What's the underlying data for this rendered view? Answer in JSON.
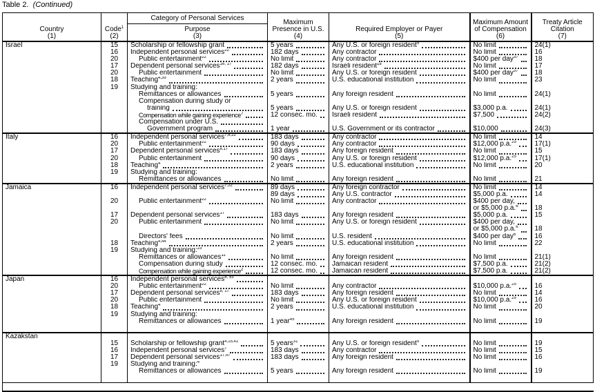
{
  "caption": {
    "label": "Table 2.",
    "note": "(Continued)"
  },
  "headers": {
    "country": "Country",
    "country_num": "(1)",
    "code": "Code",
    "code_note": "1",
    "code_num": "(2)",
    "category": "Category of Personal Services",
    "purpose": "Purpose",
    "purpose_num": "(3)",
    "presence": "Maximum Presence in U.S.",
    "presence_num": "(4)",
    "payer": "Required Employer or Payer",
    "payer_num": "(5)",
    "comp": "Maximum Amount of Compensation",
    "comp_num": "(6)",
    "article": "Treaty Article Citation",
    "article_num": "(7)"
  },
  "countries": [
    {
      "name": "Israel",
      "lines": [
        {
          "code": "15",
          "purpose": "Scholarship or fellowship grant",
          "presence": "5 years",
          "payer": "Any U.S. or foreign resident",
          "payer_note": "5",
          "comp": "No limit",
          "article": "24(1)"
        },
        {
          "code": "16",
          "purpose": "Independent personal services",
          "purpose_note": "22",
          "presence": "182 days",
          "payer": "Any contractor",
          "comp": "No limit",
          "article": "16"
        },
        {
          "code": "20",
          "indent": 1,
          "purpose": "Public entertainment",
          "purpose_note": "22",
          "presence": "No limit",
          "payer": "Any contractor",
          "comp": "$400 per day",
          "comp_note": "37",
          "article": "18"
        },
        {
          "code": "17",
          "purpose": "Dependent personal services",
          "purpose_note": "16, 17",
          "presence": "182 days",
          "payer": "Israeli resident",
          "payer_note": "18",
          "comp": "No limit",
          "article": "17"
        },
        {
          "code": "20",
          "indent": 1,
          "purpose": "Public entertainment",
          "presence": "No limit",
          "payer": "Any U.S. or foreign resident",
          "comp": "$400 per day",
          "comp_note": "37",
          "article": "18"
        },
        {
          "code": "18",
          "purpose": "Teaching",
          "purpose_note": "4,39",
          "presence": "2 years",
          "payer": "U.S. educational institution",
          "comp": "No limit",
          "article": "23"
        },
        {
          "code": "19",
          "purpose": "Studying and training:",
          "noleader": true
        },
        {
          "indent": 1,
          "purpose": "Remittances or allowances",
          "presence": "5 years",
          "payer": "Any foreign resident",
          "comp": "No limit",
          "article": "24(1)"
        },
        {
          "indent": 1,
          "purpose": "Compensation during study or",
          "noleader": true
        },
        {
          "indent": 2,
          "purpose": "training",
          "presence": "5 years",
          "payer": "Any U.S. or foreign resident",
          "comp": "$3,000 p.a.",
          "article": "24(1)"
        },
        {
          "indent": 1,
          "small": true,
          "purpose": "Compensation while gaining experience",
          "purpose_note": "7",
          "presence": "12 consec. mo.",
          "payer": "Israeli resident",
          "comp": "$7,500",
          "article": "24(2)"
        },
        {
          "indent": 1,
          "purpose": "Compensation under U.S."
        },
        {
          "indent": 2,
          "purpose": "Government program",
          "presence": "1 year",
          "payer": "U.S. Government or its contractor",
          "comp": "$10,000",
          "article": "24(3)"
        }
      ]
    },
    {
      "name": "Italy",
      "lines": [
        {
          "code": "16",
          "purpose": "Independent personal services",
          "purpose_note": "7,8,22",
          "presence": "183 days",
          "payer": "Any contractor",
          "comp": "No limit",
          "article": "14"
        },
        {
          "code": "20",
          "indent": 1,
          "purpose": "Public entertainment",
          "purpose_note": "22",
          "presence": "90 days",
          "payer": "Any contractor",
          "comp": "$12,000 p.a.",
          "comp_note": "25",
          "article": "17(1)"
        },
        {
          "code": "17",
          "purpose": "Dependent personal services",
          "purpose_note": "8,17",
          "presence": "183 days",
          "payer": "Any foreign resident",
          "comp": "No limit",
          "article": "15"
        },
        {
          "code": "20",
          "indent": 1,
          "purpose": "Public entertainment",
          "presence": "90 days",
          "payer": "Any U.S. or foreign resident",
          "comp": "$12,000 p.a.",
          "comp_note": "25",
          "article": "17(1)"
        },
        {
          "code": "18",
          "purpose": "Teaching",
          "purpose_note": "4",
          "presence": "2 years",
          "payer": "U.S. educational institution",
          "comp": "No limit",
          "article": "20"
        },
        {
          "code": "19",
          "purpose": "Studying and training:",
          "noleader": true
        },
        {
          "indent": 1,
          "purpose": "Remittances or allowances",
          "presence": "No limit",
          "payer": "Any foreign resident",
          "comp": "No limit",
          "article": "21"
        }
      ]
    },
    {
      "name": "Jamaica",
      "lines": [
        {
          "code": "16",
          "purpose": "Independent personal services",
          "purpose_note": "7,22",
          "presence": "89 days",
          "payer": "Any foreign contractor",
          "comp": "No limit",
          "article": "14"
        },
        {
          "presence": "89 days",
          "payer": "Any U.S. contractor",
          "comp": "$5,000 p.a.",
          "article": "14"
        },
        {
          "code": "20",
          "indent": 1,
          "purpose": "Public entertainment",
          "purpose_note": "22",
          "presence": "No limit",
          "payer": "Any contractor",
          "comp": "$400 per day,"
        },
        {
          "comp": "or $5,000 p.a.",
          "comp_note": "6",
          "article": "18"
        },
        {
          "code": "17",
          "purpose": "Dependent personal services",
          "purpose_note": "17",
          "presence": "183 days",
          "payer": "Any foreign resident",
          "comp": "$5,000 p.a.",
          "article": "15"
        },
        {
          "code": "20",
          "indent": 1,
          "purpose": "Public entertainment",
          "presence": "No limit",
          "payer": "Any U.S. or foreign resident",
          "comp": "$400 per day,"
        },
        {
          "comp": "or $5,000 p.a.",
          "comp_note": "6",
          "article": "18"
        },
        {
          "indent": 1,
          "purpose": "Directors' fees",
          "presence": "No limit",
          "payer": "U.S. resident",
          "comp": "$400 per day",
          "comp_note": "6",
          "article": "16"
        },
        {
          "code": "18",
          "purpose": "Teaching",
          "purpose_note": "4,44",
          "presence": "2 years",
          "payer": "U.S. educational institution",
          "comp": "No limit",
          "article": "22"
        },
        {
          "code": "19",
          "purpose": "Studying and training:",
          "purpose_note": "23",
          "noleader": true
        },
        {
          "indent": 1,
          "purpose": "Remittances or allowances",
          "purpose_note": "11",
          "presence": "No limit",
          "payer": "Any foreign resident",
          "comp": "No limit",
          "article": "21(1)"
        },
        {
          "indent": 1,
          "purpose": "Compensation during study",
          "presence": "12 consec. mo.",
          "payer": "Jamaican resident",
          "comp": "$7,500 p.a.",
          "article": "21(2)"
        },
        {
          "indent": 1,
          "small": true,
          "purpose": "Compensation while gaining experience",
          "purpose_note": "2",
          "presence": "12 consec. mo.",
          "payer": "Jamaican resident",
          "comp": "$7,500 p.a.",
          "article": "21(2)"
        }
      ]
    },
    {
      "name": "Japan",
      "lines": [
        {
          "code": "16",
          "purpose": "Independent personal services",
          "purpose_note": "8, 53"
        },
        {
          "code": "20",
          "indent": 1,
          "purpose": "Public entertainment",
          "purpose_note": "22",
          "presence": "No limit",
          "payer": "Any contractor",
          "comp": "$10,000 p.a.",
          "comp_note": "25",
          "article": "16"
        },
        {
          "code": "17",
          "purpose": "Dependent personal services",
          "purpose_note": "8, 17",
          "presence": "183 days",
          "payer": "Any foreign resident",
          "comp": "No limit",
          "article": "14"
        },
        {
          "code": "20",
          "indent": 1,
          "purpose": "Public entertainment",
          "presence": "No limit",
          "payer": "Any U.S. or foreign resident",
          "comp": "$10,000 p.a.",
          "comp_note": "25",
          "article": "16"
        },
        {
          "code": "18",
          "purpose": "Teaching",
          "purpose_note": "4",
          "presence": "2 years",
          "payer": "U.S. educational institution",
          "comp": "No limit",
          "article": "20"
        },
        {
          "code": "19",
          "purpose": "Studying and training:",
          "noleader": true
        },
        {
          "indent": 1,
          "purpose": "Remittances or allowances",
          "presence": "1 year",
          "presence_note": "45",
          "payer": "Any foreign resident",
          "comp": "No limit",
          "article": "19"
        },
        {}
      ]
    },
    {
      "name": "Kazakstan",
      "lines": [
        {},
        {
          "code": "15",
          "purpose": "Scholarship or fellowship grant",
          "purpose_note": "4,15,41",
          "presence": "5 years",
          "presence_note": "31",
          "payer": "Any U.S. or foreign resident",
          "payer_note": "5",
          "comp": "No limit",
          "article": "19"
        },
        {
          "code": "16",
          "purpose": "Independent personal services",
          "purpose_note": "7",
          "presence": "183 days",
          "payer": "Any contractor",
          "comp": "No limit",
          "article": "15"
        },
        {
          "code": "17",
          "purpose": "Dependent personal services",
          "purpose_note": "17,47",
          "presence": "183 days",
          "payer": "Any foreign resident",
          "comp": "No limit",
          "article": "16"
        },
        {
          "code": "19",
          "purpose": "Studying and training:",
          "purpose_note": "4",
          "noleader": true
        },
        {
          "indent": 1,
          "purpose": "Remittances or allowances",
          "presence": "5 years",
          "payer": "Any foreign resident",
          "comp": "No limit",
          "article": "19"
        },
        {}
      ]
    }
  ]
}
